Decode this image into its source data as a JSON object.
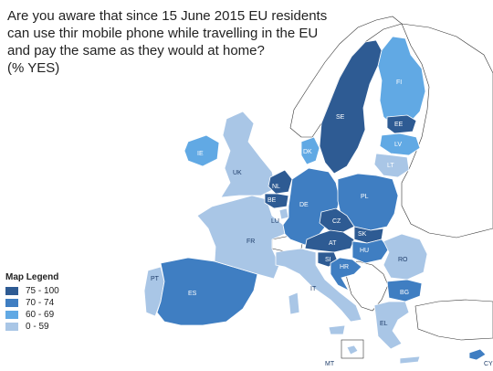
{
  "title_lines": [
    "Are you aware that since 15 June 2015 EU residents",
    "can use thir mobile phone while travelling in the EU",
    "and pay the same as they would at home?",
    "(% YES)"
  ],
  "legend": {
    "title": "Map Legend",
    "items": [
      {
        "label": "75 - 100",
        "color": "#2e5b93"
      },
      {
        "label": "70 - 74",
        "color": "#3f7ec2"
      },
      {
        "label": "60 - 69",
        "color": "#61a9e4"
      },
      {
        "label": "0 - 59",
        "color": "#a9c6e6"
      }
    ]
  },
  "countries": [
    {
      "code": "SE",
      "bin": "75 - 100"
    },
    {
      "code": "FI",
      "bin": "60 - 69"
    },
    {
      "code": "EE",
      "bin": "75 - 100"
    },
    {
      "code": "LV",
      "bin": "60 - 69"
    },
    {
      "code": "LT",
      "bin": "0 - 59"
    },
    {
      "code": "DK",
      "bin": "60 - 69"
    },
    {
      "code": "IE",
      "bin": "60 - 69"
    },
    {
      "code": "UK",
      "bin": "0 - 59"
    },
    {
      "code": "NL",
      "bin": "75 - 100"
    },
    {
      "code": "BE",
      "bin": "75 - 100"
    },
    {
      "code": "LU",
      "bin": "0 - 59"
    },
    {
      "code": "DE",
      "bin": "70 - 74"
    },
    {
      "code": "PL",
      "bin": "70 - 74"
    },
    {
      "code": "CZ",
      "bin": "75 - 100"
    },
    {
      "code": "SK",
      "bin": "75 - 100"
    },
    {
      "code": "AT",
      "bin": "75 - 100"
    },
    {
      "code": "HU",
      "bin": "70 - 74"
    },
    {
      "code": "SI",
      "bin": "75 - 100"
    },
    {
      "code": "HR",
      "bin": "70 - 74"
    },
    {
      "code": "RO",
      "bin": "0 - 59"
    },
    {
      "code": "BG",
      "bin": "70 - 74"
    },
    {
      "code": "FR",
      "bin": "0 - 59"
    },
    {
      "code": "ES",
      "bin": "70 - 74"
    },
    {
      "code": "PT",
      "bin": "0 - 59"
    },
    {
      "code": "IT",
      "bin": "0 - 59"
    },
    {
      "code": "EL",
      "bin": "0 - 59"
    },
    {
      "code": "MT",
      "bin": "0 - 59"
    },
    {
      "code": "CY",
      "bin": "70 - 74"
    }
  ]
}
